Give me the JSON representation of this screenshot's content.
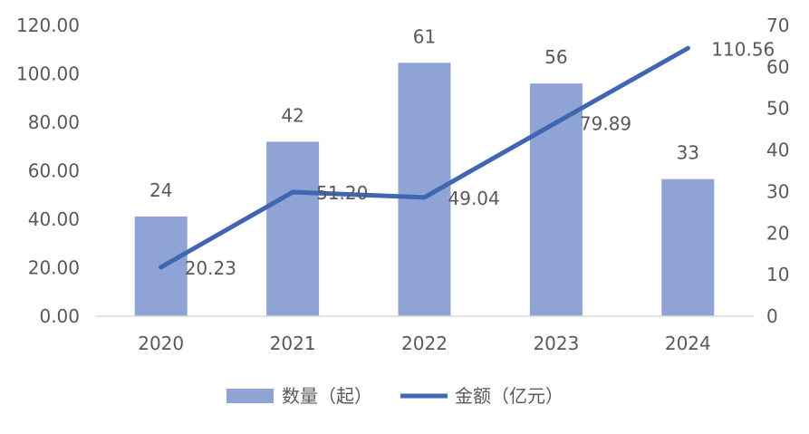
{
  "chart_data": {
    "type": "bar+line",
    "categories": [
      "2020",
      "2021",
      "2022",
      "2023",
      "2024"
    ],
    "series": [
      {
        "name": "数量（起）",
        "type": "bar",
        "axis": "right",
        "values": [
          24,
          42,
          61,
          56,
          33
        ],
        "color": "#8FA3D5"
      },
      {
        "name": "金额（亿元）",
        "type": "line",
        "axis": "left",
        "values": [
          20.23,
          51.2,
          49.04,
          79.89,
          110.56
        ],
        "color": "#4066B2"
      }
    ],
    "left_axis": {
      "ylim": [
        0,
        120
      ],
      "ticks": [
        "0.00",
        "20.00",
        "40.00",
        "60.00",
        "80.00",
        "100.00",
        "120.00"
      ]
    },
    "right_axis": {
      "ylim": [
        0,
        70
      ],
      "ticks": [
        "0",
        "10",
        "20",
        "30",
        "40",
        "50",
        "60",
        "70"
      ]
    },
    "bar_labels": [
      "24",
      "42",
      "61",
      "56",
      "33"
    ],
    "line_labels": [
      "20.23",
      "51.20",
      "49.04",
      "79.89",
      "110.56"
    ],
    "grid": false,
    "legend": {
      "position": "bottom",
      "items": [
        "数量（起）",
        "金额（亿元）"
      ]
    }
  }
}
